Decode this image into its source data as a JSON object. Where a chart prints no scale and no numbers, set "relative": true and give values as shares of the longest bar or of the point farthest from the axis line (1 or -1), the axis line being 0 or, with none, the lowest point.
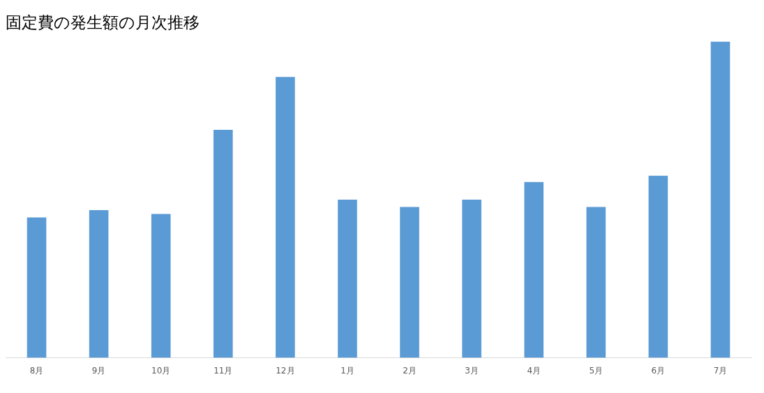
{
  "chart_data": {
    "type": "bar",
    "title": "固定費の発生額の月次推移",
    "relative": true,
    "categories": [
      "8月",
      "9月",
      "10月",
      "11月",
      "12月",
      "1月",
      "2月",
      "3月",
      "4月",
      "5月",
      "6月",
      "7月"
    ],
    "values": [
      0.444,
      0.467,
      0.455,
      0.721,
      0.888,
      0.5,
      0.477,
      0.5,
      0.556,
      0.477,
      0.576,
      1
    ],
    "color": "#5b9bd5",
    "grid": false,
    "legend": false
  }
}
